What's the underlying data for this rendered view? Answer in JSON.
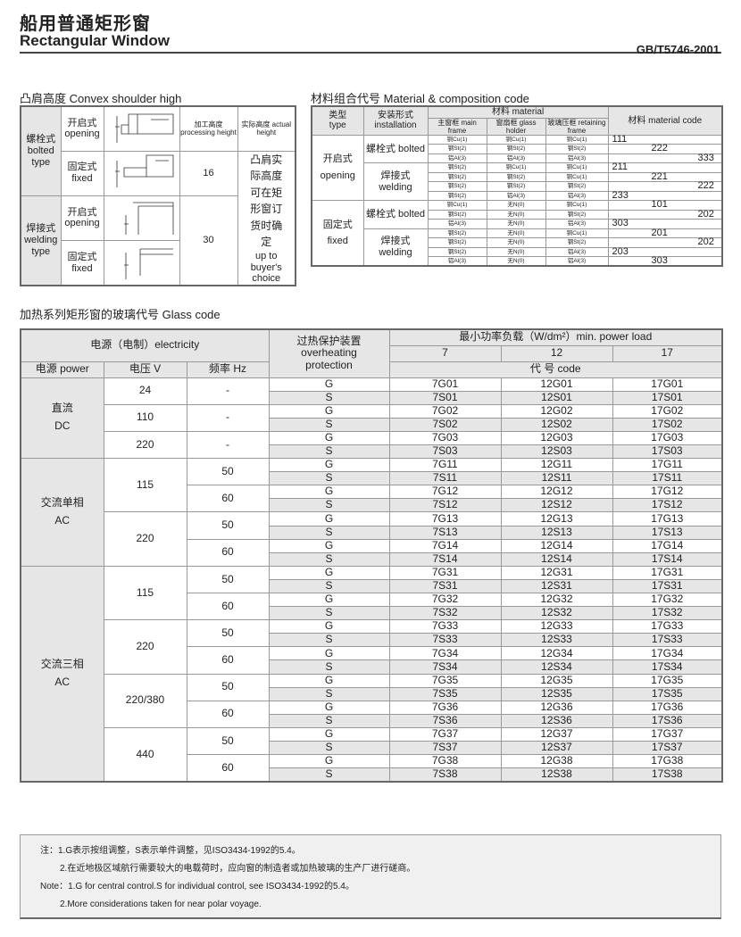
{
  "header": {
    "title_cn": "船用普通矩形窗",
    "title_en": "Rectangular Window",
    "standard": "GB/T5746-2001"
  },
  "shoulder": {
    "title": "凸肩高度 Convex shoulder high",
    "col_processing": "加工高度 processing height",
    "col_actual": "实际高度 actual height",
    "bolted_cn": "螺栓式",
    "bolted_en": "bolted type",
    "welding_cn": "焊接式",
    "welding_en": "welding type",
    "opening_cn": "开启式",
    "opening_en": "opening",
    "fixed_cn": "固定式",
    "fixed_en": "fixed",
    "bolted_height": "16",
    "welding_height": "30",
    "actual_cn": "凸肩实际高度可在矩形窗订货时确定",
    "actual_en": "up to buyer's choice"
  },
  "material": {
    "title": "材料组合代号 Material & composition code",
    "h_type_cn": "类型",
    "h_type_en": "type",
    "h_inst_cn": "安装形式",
    "h_inst_en": "installation",
    "h_material": "材料 material",
    "h_main": "主窗框 main frame",
    "h_glass": "窗扇框 glass holder",
    "h_retain": "玻璃压框 retaining frame",
    "h_code": "材料 material code",
    "groups": [
      {
        "type": "开启式 opening",
        "inst": "螺栓式 bolted",
        "rows": [
          [
            "铜Cu(1)",
            "铜Cu(1)",
            "铜Cu(1)",
            "111"
          ],
          [
            "钢St(2)",
            "钢St(2)",
            "钢St(2)",
            "222"
          ],
          [
            "铝Al(3)",
            "铝Al(3)",
            "铝Al(3)",
            "333"
          ]
        ]
      },
      {
        "type": "",
        "inst": "焊接式 welding",
        "rows": [
          [
            "钢St(2)",
            "铜Cu(1)",
            "铜Cu(1)",
            "211"
          ],
          [
            "钢St(2)",
            "钢St(2)",
            "铜Cu(1)",
            "221"
          ],
          [
            "钢St(2)",
            "钢St(2)",
            "钢St(2)",
            "222"
          ],
          [
            "钢St(2)",
            "铝Al(3)",
            "铝Al(3)",
            "233"
          ]
        ]
      },
      {
        "type": "固定式 fixed",
        "inst": "螺栓式 bolted",
        "rows": [
          [
            "铜Cu(1)",
            "无N(0)",
            "铜Cu(1)",
            "101"
          ],
          [
            "钢St(2)",
            "无N(0)",
            "钢St(2)",
            "202"
          ],
          [
            "铝Al(3)",
            "无N(0)",
            "铝Al(3)",
            "303"
          ]
        ]
      },
      {
        "type": "",
        "inst": "焊接式 welding",
        "rows": [
          [
            "钢St(2)",
            "无N(0)",
            "铜Cu(1)",
            "201"
          ],
          [
            "钢St(2)",
            "无N(0)",
            "钢St(2)",
            "202"
          ],
          [
            "钢St(2)",
            "无N(0)",
            "铝Al(3)",
            "203"
          ],
          [
            "铝Al(3)",
            "无N(0)",
            "铝Al(3)",
            "303"
          ]
        ]
      }
    ]
  },
  "glass": {
    "title": "加热系列矩形窗的玻璃代号  Glass code",
    "h_electricity": "电源（电制）electricity",
    "h_power": "电源 power",
    "h_voltage": "电压 V",
    "h_freq": "频率 Hz",
    "h_protection": "过热保护装置 overheating protection",
    "h_load": "最小功率负载（W/dm²）min. power load",
    "loads": [
      "7",
      "12",
      "17"
    ],
    "h_code": "代 号 code",
    "power_groups": [
      {
        "name": "直流 DC",
        "voltages": [
          {
            "v": "24",
            "freqs": [
              {
                "f": "-",
                "n": "01"
              }
            ]
          },
          {
            "v": "110",
            "freqs": [
              {
                "f": "-",
                "n": "02"
              }
            ]
          },
          {
            "v": "220",
            "freqs": [
              {
                "f": "-",
                "n": "03"
              }
            ]
          }
        ]
      },
      {
        "name": "交流单相 AC",
        "voltages": [
          {
            "v": "115",
            "freqs": [
              {
                "f": "50",
                "n": "11"
              },
              {
                "f": "60",
                "n": "12"
              }
            ]
          },
          {
            "v": "220",
            "freqs": [
              {
                "f": "50",
                "n": "13"
              },
              {
                "f": "60",
                "n": "14"
              }
            ]
          }
        ]
      },
      {
        "name": "交流三相 AC",
        "voltages": [
          {
            "v": "115",
            "freqs": [
              {
                "f": "50",
                "n": "31"
              },
              {
                "f": "60",
                "n": "32"
              }
            ]
          },
          {
            "v": "220",
            "freqs": [
              {
                "f": "50",
                "n": "33"
              },
              {
                "f": "60",
                "n": "34"
              }
            ]
          },
          {
            "v": "220/380",
            "freqs": [
              {
                "f": "50",
                "n": "35"
              },
              {
                "f": "60",
                "n": "36"
              }
            ]
          },
          {
            "v": "440",
            "freqs": [
              {
                "f": "50",
                "n": "37"
              },
              {
                "f": "60",
                "n": "38"
              }
            ]
          }
        ]
      }
    ]
  },
  "notes": {
    "cn1": "注：1.G表示按组调整，S表示单件调整，见ISO3434-1992的5.4。",
    "cn2": "2.在近地极区域航行需要较大的电载荷时，应向窗的制造者或加热玻璃的生产厂进行磋商。",
    "en1": "Note：1.G for central control.S for individual control, see ISO3434-1992的5.4。",
    "en2": "2.More considerations taken for near polar voyage."
  }
}
